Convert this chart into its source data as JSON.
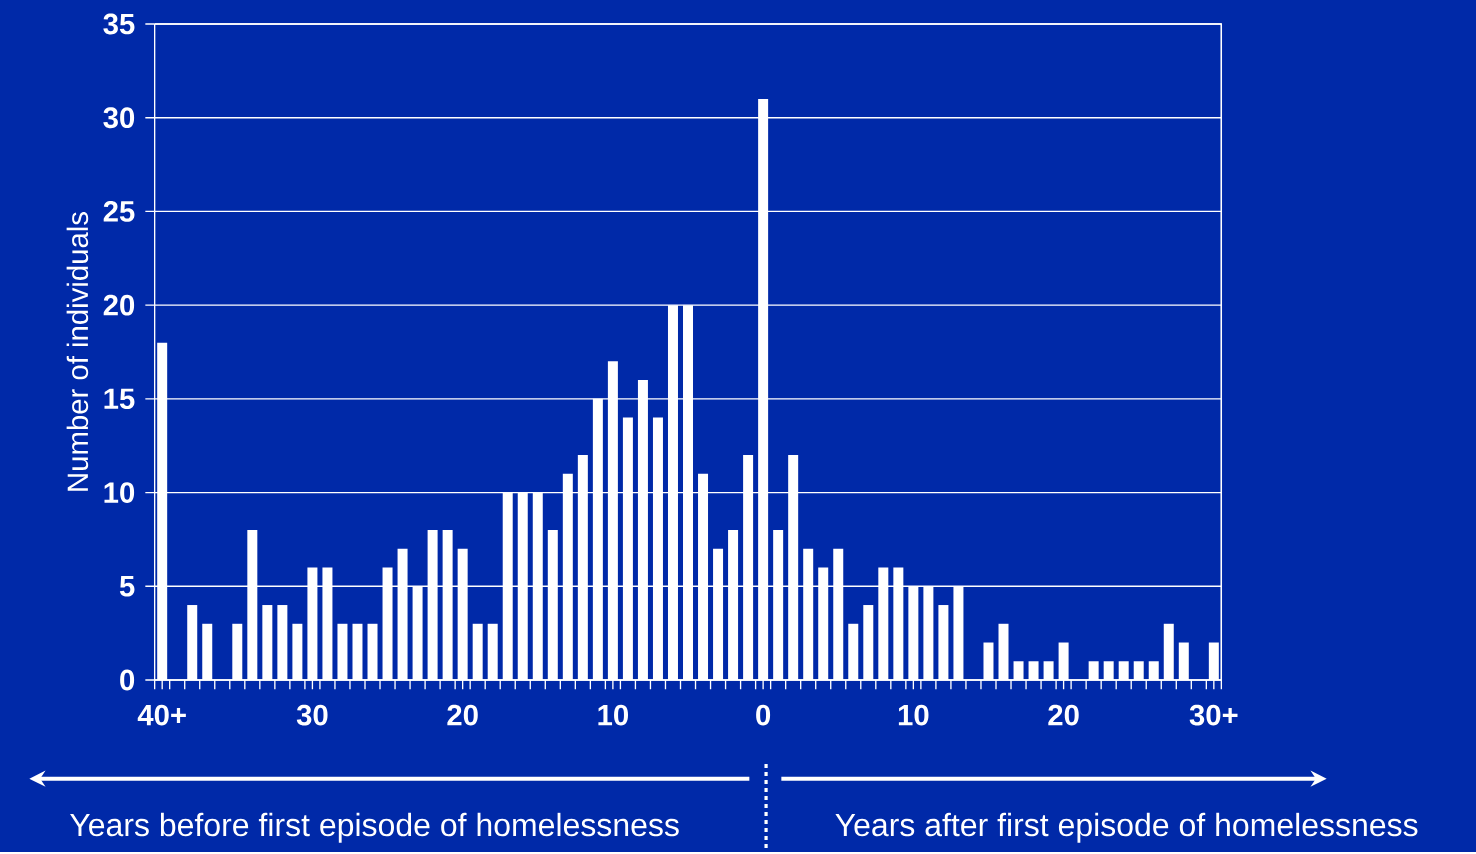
{
  "chart_data": {
    "type": "bar",
    "ylabel": "Number of individuals",
    "x": [
      -40,
      -39,
      -38,
      -37,
      -36,
      -35,
      -34,
      -33,
      -32,
      -31,
      -30,
      -29,
      -28,
      -27,
      -26,
      -25,
      -24,
      -23,
      -22,
      -21,
      -20,
      -19,
      -18,
      -17,
      -16,
      -15,
      -14,
      -13,
      -12,
      -11,
      -10,
      -9,
      -8,
      -7,
      -6,
      -5,
      -4,
      -3,
      -2,
      -1,
      0,
      1,
      2,
      3,
      4,
      5,
      6,
      7,
      8,
      9,
      10,
      11,
      12,
      13,
      14,
      15,
      16,
      17,
      18,
      19,
      20,
      21,
      22,
      23,
      24,
      25,
      26,
      27,
      28,
      29,
      30
    ],
    "values": [
      18,
      0,
      4,
      3,
      0,
      3,
      8,
      4,
      4,
      3,
      6,
      6,
      3,
      3,
      3,
      6,
      7,
      5,
      8,
      8,
      7,
      3,
      3,
      10,
      10,
      10,
      8,
      11,
      12,
      15,
      17,
      14,
      16,
      14,
      20,
      20,
      11,
      7,
      8,
      12,
      31,
      8,
      12,
      7,
      6,
      7,
      3,
      4,
      6,
      6,
      5,
      5,
      4,
      5,
      0,
      2,
      3,
      1,
      1,
      1,
      2,
      0,
      1,
      1,
      1,
      1,
      1,
      3,
      2,
      0,
      2
    ],
    "color": "#ffffff",
    "xlim": [
      -40.5,
      30.5
    ],
    "ylim": [
      0,
      35
    ],
    "xticks": [
      {
        "value": -40,
        "label": "40+"
      },
      {
        "value": -30,
        "label": "30"
      },
      {
        "value": -20,
        "label": "20"
      },
      {
        "value": -10,
        "label": "10"
      },
      {
        "value": 0,
        "label": "0"
      },
      {
        "value": 10,
        "label": "10"
      },
      {
        "value": 20,
        "label": "20"
      },
      {
        "value": 30,
        "label": "30+"
      }
    ],
    "yticks": [
      0,
      5,
      10,
      15,
      20,
      25,
      30,
      35
    ],
    "grid": "y",
    "annotations": [
      "Years before first episode of homelessness",
      "Years after first episode of homelessness"
    ]
  }
}
